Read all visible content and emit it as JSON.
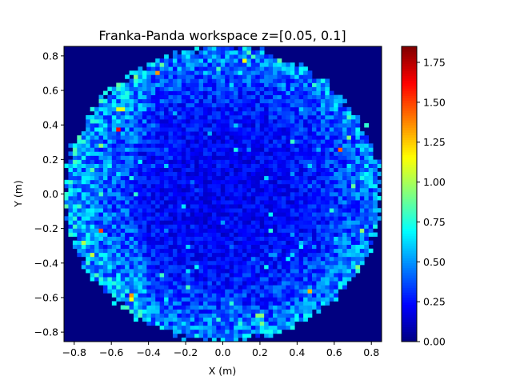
{
  "chart_data": {
    "type": "heatmap",
    "title": "Franka-Panda workspace z=[0.05, 0.1]",
    "xlabel": "X (m)",
    "ylabel": "Y (m)",
    "xlim": [
      -0.855,
      0.855
    ],
    "ylim": [
      -0.855,
      0.855
    ],
    "x_ticks": [
      -0.8,
      -0.6,
      -0.4,
      -0.2,
      0.0,
      0.2,
      0.4,
      0.6,
      0.8
    ],
    "x_tick_labels": [
      "−0.8",
      "−0.6",
      "−0.4",
      "−0.2",
      "0.0",
      "0.2",
      "0.4",
      "0.6",
      "0.8"
    ],
    "y_ticks": [
      -0.8,
      -0.6,
      -0.4,
      -0.2,
      0.0,
      0.2,
      0.4,
      0.6,
      0.8
    ],
    "y_tick_labels": [
      "−0.8",
      "−0.6",
      "−0.4",
      "−0.2",
      "0.0",
      "0.2",
      "0.4",
      "0.6",
      "0.8"
    ],
    "colormap": "jet",
    "colorbar": {
      "range": [
        0.0,
        1.85
      ],
      "ticks": [
        0.0,
        0.25,
        0.5,
        0.75,
        1.0,
        1.25,
        1.5,
        1.75
      ],
      "tick_labels": [
        "0.00",
        "0.25",
        "0.50",
        "0.75",
        "1.00",
        "1.25",
        "1.50",
        "1.75"
      ]
    },
    "grid_bins": [
      73,
      73
    ],
    "reach_radius_m": 0.855,
    "value_profile": {
      "center": 0.22,
      "edge": 0.55,
      "max": 1.85
    },
    "hotspots": [
      {
        "x": -0.57,
        "y": 0.37,
        "value": 1.6
      },
      {
        "x": -0.36,
        "y": 0.7,
        "value": 1.35
      },
      {
        "x": -0.66,
        "y": -0.22,
        "value": 1.5
      },
      {
        "x": -0.5,
        "y": -0.58,
        "value": 1.35
      },
      {
        "x": 0.63,
        "y": 0.25,
        "value": 1.45
      },
      {
        "x": 0.46,
        "y": -0.57,
        "value": 1.3
      },
      {
        "x": -0.55,
        "y": 0.5,
        "value": 1.1
      },
      {
        "x": -0.7,
        "y": -0.35,
        "value": 1.05
      },
      {
        "x": 0.2,
        "y": -0.7,
        "value": 0.95
      }
    ],
    "grid": false,
    "legend": "colorbar-right"
  }
}
